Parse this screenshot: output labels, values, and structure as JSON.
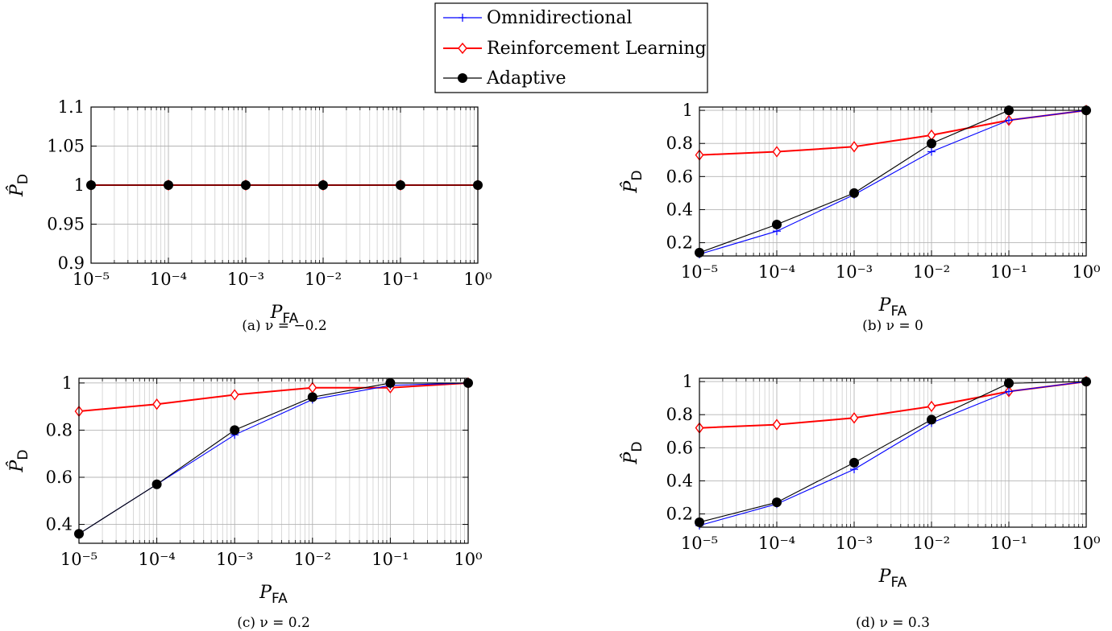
{
  "legend": {
    "entries": [
      {
        "label": "Omnidirectional",
        "color": "#0000ff",
        "marker": "plus"
      },
      {
        "label": "Reinforcement Learning",
        "color": "#ff0000",
        "marker": "diamond"
      },
      {
        "label": "Adaptive",
        "color": "#000000",
        "marker": "circle"
      }
    ]
  },
  "chart_data": [
    {
      "type": "line",
      "caption": "(a) ν = −0.2",
      "xlabel_main": "P",
      "xlabel_sub": "FA",
      "ylabel_main": "P̂",
      "ylabel_sub": "D",
      "x_scale": "log",
      "x": [
        1e-05,
        0.0001,
        0.001,
        0.01,
        0.1,
        1
      ],
      "x_tick_labels": [
        "10⁻⁵",
        "10⁻⁴",
        "10⁻³",
        "10⁻²",
        "10⁻¹",
        "10⁰"
      ],
      "ylim": [
        0.9,
        1.1
      ],
      "y_ticks": [
        0.9,
        0.95,
        1,
        1.05,
        1.1
      ],
      "y_tick_labels": [
        "0.9",
        "0.95",
        "1",
        "1.05",
        "1.1"
      ],
      "grid": true,
      "series": [
        {
          "name": "Omnidirectional",
          "values": [
            1,
            1,
            1,
            1,
            1,
            1
          ]
        },
        {
          "name": "Reinforcement Learning",
          "values": [
            1,
            1,
            1,
            1,
            1,
            1
          ]
        },
        {
          "name": "Adaptive",
          "values": [
            1,
            1,
            1,
            1,
            1,
            1
          ]
        }
      ]
    },
    {
      "type": "line",
      "caption": "(b) ν = 0",
      "xlabel_main": "P",
      "xlabel_sub": "FA",
      "ylabel_main": "P̂",
      "ylabel_sub": "D",
      "x_scale": "log",
      "x": [
        1e-05,
        0.0001,
        0.001,
        0.01,
        0.1,
        1
      ],
      "x_tick_labels": [
        "10⁻⁵",
        "10⁻⁴",
        "10⁻³",
        "10⁻²",
        "10⁻¹",
        "10⁰"
      ],
      "ylim": [
        0.12,
        1.02
      ],
      "y_ticks": [
        0.2,
        0.4,
        0.6,
        0.8,
        1
      ],
      "y_tick_labels": [
        "0.2",
        "0.4",
        "0.6",
        "0.8",
        "1"
      ],
      "grid": true,
      "series": [
        {
          "name": "Omnidirectional",
          "values": [
            0.13,
            0.27,
            0.49,
            0.75,
            0.94,
            1
          ]
        },
        {
          "name": "Reinforcement Learning",
          "values": [
            0.73,
            0.75,
            0.78,
            0.85,
            0.94,
            1
          ]
        },
        {
          "name": "Adaptive",
          "values": [
            0.14,
            0.31,
            0.5,
            0.8,
            1,
            1
          ]
        }
      ]
    },
    {
      "type": "line",
      "caption": "(c) ν = 0.2",
      "xlabel_main": "P",
      "xlabel_sub": "FA",
      "ylabel_main": "P̂",
      "ylabel_sub": "D",
      "x_scale": "log",
      "x": [
        1e-05,
        0.0001,
        0.001,
        0.01,
        0.1,
        1
      ],
      "x_tick_labels": [
        "10⁻⁵",
        "10⁻⁴",
        "10⁻³",
        "10⁻²",
        "10⁻¹",
        "10⁰"
      ],
      "ylim": [
        0.32,
        1.02
      ],
      "y_ticks": [
        0.4,
        0.6,
        0.8,
        1
      ],
      "y_tick_labels": [
        "0.4",
        "0.6",
        "0.8",
        "1"
      ],
      "grid": true,
      "series": [
        {
          "name": "Omnidirectional",
          "values": [
            0.36,
            0.57,
            0.78,
            0.93,
            0.99,
            1
          ]
        },
        {
          "name": "Reinforcement Learning",
          "values": [
            0.88,
            0.91,
            0.95,
            0.98,
            0.98,
            1
          ]
        },
        {
          "name": "Adaptive",
          "values": [
            0.36,
            0.57,
            0.8,
            0.94,
            1,
            1
          ]
        }
      ]
    },
    {
      "type": "line",
      "caption": "(d) ν = 0.3",
      "xlabel_main": "P",
      "xlabel_sub": "FA",
      "ylabel_main": "P̂",
      "ylabel_sub": "D",
      "x_scale": "log",
      "x": [
        1e-05,
        0.0001,
        0.001,
        0.01,
        0.1,
        1
      ],
      "x_tick_labels": [
        "10⁻⁵",
        "10⁻⁴",
        "10⁻³",
        "10⁻²",
        "10⁻¹",
        "10⁰"
      ],
      "ylim": [
        0.12,
        1.02
      ],
      "y_ticks": [
        0.2,
        0.4,
        0.6,
        0.8,
        1
      ],
      "y_tick_labels": [
        "0.2",
        "0.4",
        "0.6",
        "0.8",
        "1"
      ],
      "grid": true,
      "series": [
        {
          "name": "Omnidirectional",
          "values": [
            0.13,
            0.26,
            0.47,
            0.75,
            0.94,
            1
          ]
        },
        {
          "name": "Reinforcement Learning",
          "values": [
            0.72,
            0.74,
            0.78,
            0.85,
            0.94,
            1
          ]
        },
        {
          "name": "Adaptive",
          "values": [
            0.15,
            0.27,
            0.51,
            0.77,
            0.99,
            1
          ]
        }
      ]
    }
  ]
}
